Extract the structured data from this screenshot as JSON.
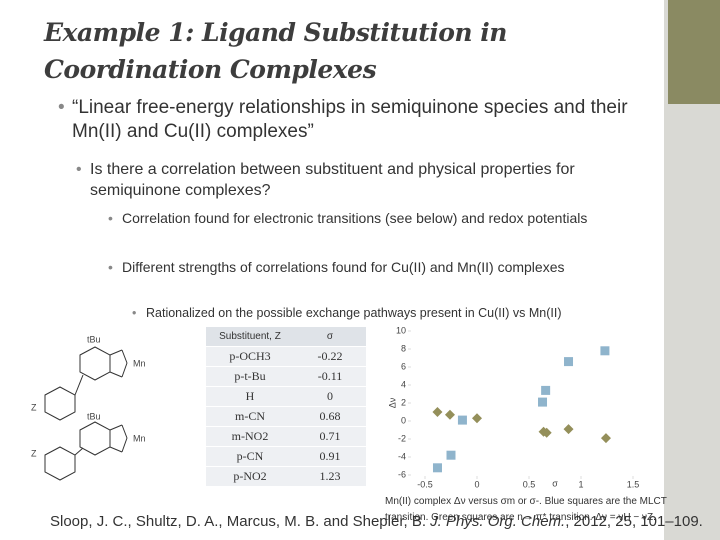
{
  "header": {
    "title_lines": [
      "Example 1: Ligand Substitution in",
      "Coordination Complexes"
    ]
  },
  "bullets": [
    {
      "level": 1,
      "text": "“Linear free-energy relationships in semiquinone species and their Mn(II) and Cu(II) complexes”"
    },
    {
      "level": 2,
      "text": "Is there a correlation between substituent and physical properties for semiquinone complexes?"
    },
    {
      "level": 3,
      "text": "Correlation found for electronic transitions (see below) and redox potentials"
    },
    {
      "level": 3,
      "text": "Different strengths of correlations found for Cu(II) and Mn(II) complexes"
    },
    {
      "level": 4,
      "text": "Rationalized on the possible exchange pathways present in Cu(II) vs Mn(II)"
    }
  ],
  "structure": {
    "labels": [
      "tBu",
      "tBu",
      "Z",
      "Z",
      "Mn",
      "Mn"
    ]
  },
  "table": {
    "header": [
      "Substituent, Z",
      "σ"
    ],
    "rows": [
      [
        "p-OCH3",
        "-0.22"
      ],
      [
        "p-t-Bu",
        "-0.11"
      ],
      [
        "H",
        "0"
      ],
      [
        "m-CN",
        "0.68"
      ],
      [
        "m-NO2",
        "0.71"
      ],
      [
        "p-CN",
        "0.91"
      ],
      [
        "p-NO2",
        "1.23"
      ]
    ]
  },
  "chart_data": {
    "type": "scatter",
    "x_label": "σ",
    "y_label": "Δν",
    "xlim": [
      -0.5,
      1.5
    ],
    "xticks": [
      -0.5,
      0,
      0.5,
      1,
      1.5
    ],
    "ylim": [
      -6,
      10
    ],
    "yticks": [
      -6,
      -4,
      -2,
      0,
      2,
      4,
      6,
      8,
      10
    ],
    "series": [
      {
        "color": "#8fb4cc",
        "marker": "square",
        "x": [
          1.23,
          0.88,
          0.66,
          0.63,
          -0.14,
          -0.25,
          -0.38
        ],
        "values": [
          7.8,
          6.6,
          3.4,
          2.1,
          0.1,
          -3.8,
          -5.2
        ]
      },
      {
        "color": "#948f5a",
        "marker": "diamond",
        "x": [
          -0.38,
          -0.26,
          0,
          0.64,
          0.67,
          0.88,
          1.24
        ],
        "values": [
          1.0,
          0.7,
          0.3,
          -1.2,
          -1.3,
          -0.9,
          -1.9
        ]
      }
    ],
    "caption": "Mn(II) complex Δν versus σm or σ-. Blue squares are the MLCT transition. Green squares are n→ π* transition. Δν = νH − νZ."
  },
  "citation": {
    "authors": "Sloop, J. C., Shultz, D. A., Marcus, M. B. and Shepler, B. ",
    "journal": "J. Phys. Org. Chem.",
    "rest": ", 2012, 25, 101–109."
  }
}
